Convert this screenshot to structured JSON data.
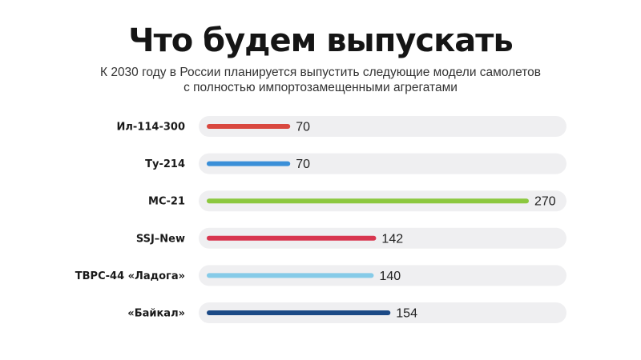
{
  "header": {
    "title": "Что будем выпускать",
    "subtitle_line1": "К 2030 году в России планируется выпустить следующие модели самолетов",
    "subtitle_line2": "с полностью импортозамещенными агрегатами"
  },
  "chart_data": {
    "type": "bar",
    "orientation": "horizontal",
    "categories": [
      "Ил-114-300",
      "Ту-214",
      "МС-21",
      "SSJ–New",
      "ТВРС-44 «Ладога»",
      "«Байкал»"
    ],
    "values": [
      70,
      70,
      270,
      142,
      140,
      154
    ],
    "colors": [
      "#d9483f",
      "#3a8fd8",
      "#8cc83f",
      "#d8364f",
      "#86cbe8",
      "#1c4a86"
    ],
    "track_color": "#efeff1",
    "xlim": [
      0,
      270
    ],
    "title": "Что будем выпускать",
    "xlabel": "",
    "ylabel": "",
    "grid": false,
    "legend": "none",
    "data_labels": true
  }
}
